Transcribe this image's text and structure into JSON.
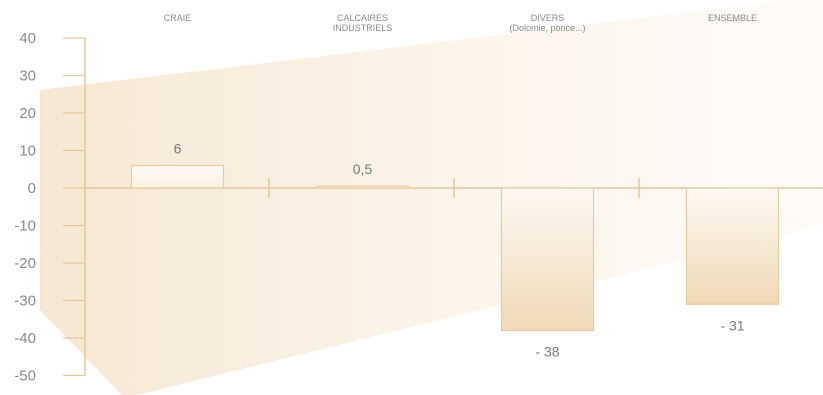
{
  "colors": {
    "axis": "#e6c79a",
    "bar_edge": "#e8cb9f",
    "bar_fill_light": "#fcf6ee",
    "bar_fill_dark": "#f0d9b5",
    "band_fill": "#f7ebd8",
    "text": "#8a8a8a"
  },
  "chart_data": {
    "type": "bar",
    "categories": [
      [
        "CRAIE"
      ],
      [
        "CALCAIRES",
        "INDUSTRIELS"
      ],
      [
        "DIVERS",
        "(Dolomie, ponce...)"
      ],
      [
        "ENSEMBLE"
      ]
    ],
    "values": [
      6,
      0.5,
      -38,
      -31
    ],
    "value_labels": [
      "6",
      "0,5",
      "- 38",
      "- 31"
    ],
    "yticks": [
      "40",
      "30",
      "20",
      "10",
      "0",
      "-10",
      "-20",
      "-30",
      "-40",
      "-50"
    ],
    "ylim": [
      -50,
      40
    ]
  }
}
